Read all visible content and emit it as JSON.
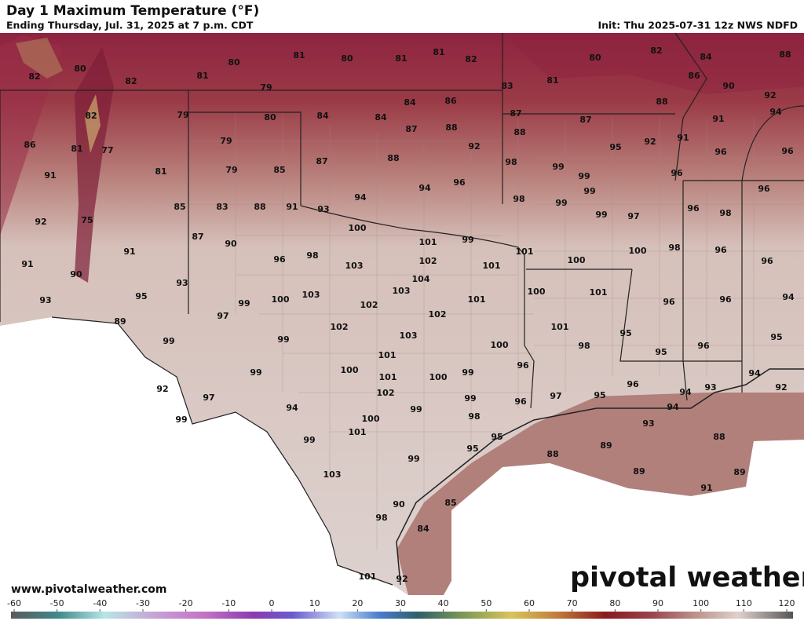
{
  "header": {
    "title": "Day 1 Maximum Temperature (°F)",
    "subtitle": "Ending Thursday, Jul. 31, 2025 at 7 p.m. CDT",
    "init": "Init: Thu 2025-07-31 12z NWS NDFD"
  },
  "map": {
    "labels": [
      82,
      80,
      80,
      81,
      80,
      81,
      81,
      82,
      80,
      82,
      84,
      88,
      82,
      81,
      79,
      83,
      81,
      86,
      90,
      92,
      79,
      82,
      80,
      84,
      84,
      84,
      86,
      87,
      87,
      88,
      94,
      91,
      86,
      81,
      77,
      79,
      87,
      88,
      88,
      92,
      95,
      92,
      91,
      96,
      96,
      91,
      81,
      79,
      85,
      87,
      88,
      98,
      99,
      99,
      96,
      94,
      94,
      96,
      98,
      99,
      99,
      96,
      85,
      83,
      88,
      91,
      93,
      99,
      97,
      96,
      98,
      92,
      75,
      87,
      90,
      100,
      101,
      99,
      101,
      91,
      96,
      98,
      103,
      102,
      101,
      100,
      100,
      98,
      96,
      96,
      91,
      90,
      93,
      104,
      103,
      100,
      101,
      93,
      95,
      99,
      100,
      103,
      102,
      101,
      96,
      96,
      94,
      89,
      97,
      102,
      102,
      101,
      95,
      95,
      99,
      99,
      103,
      100,
      98,
      96,
      95,
      101,
      99,
      100,
      96,
      99,
      100,
      101,
      94,
      92,
      97,
      102,
      99,
      97,
      95,
      96,
      94,
      93,
      92,
      99,
      94,
      99,
      98,
      96,
      94,
      100,
      101,
      93,
      95,
      99,
      95,
      88,
      88,
      89,
      99,
      103,
      89,
      89,
      91,
      90,
      85,
      98,
      84,
      101,
      92
    ]
  },
  "colorbar": {
    "ticks": [
      -60,
      -50,
      -40,
      -30,
      -20,
      -10,
      0,
      10,
      20,
      30,
      40,
      50,
      60,
      70,
      80,
      90,
      100,
      110,
      120
    ]
  },
  "footer": {
    "website": "www.pivotalweather.com",
    "logo": "pivotal weather"
  }
}
